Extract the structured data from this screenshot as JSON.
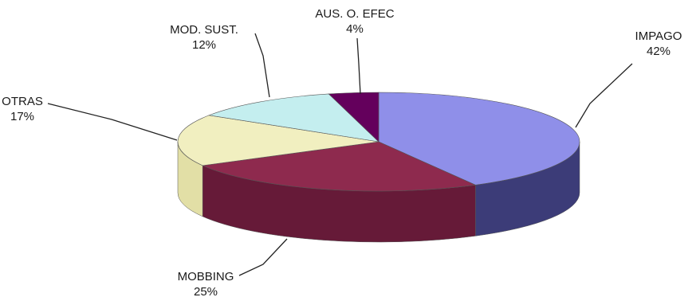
{
  "chart_data": {
    "type": "pie",
    "style": "3d",
    "legend": "none",
    "slices": [
      {
        "label": "IMPAGO",
        "value": 42,
        "value_text": "42%",
        "color": "#8f8fe9",
        "side_color": "#3c3c78"
      },
      {
        "label": "MOBBING",
        "value": 25,
        "value_text": "25%",
        "color": "#8e2a4e",
        "side_color": "#661a38"
      },
      {
        "label": "OTRAS",
        "value": 17,
        "value_text": "17%",
        "color": "#f1efc0",
        "side_color": "#e2dfa6"
      },
      {
        "label": "MOD. SUST.",
        "value": 12,
        "value_text": "12%",
        "color": "#c4eeef",
        "side_color": "#9fd3d4"
      },
      {
        "label": "AUS. O. EFEC",
        "value": 4,
        "value_text": "4%",
        "color": "#64005c",
        "side_color": "#420040"
      }
    ]
  }
}
